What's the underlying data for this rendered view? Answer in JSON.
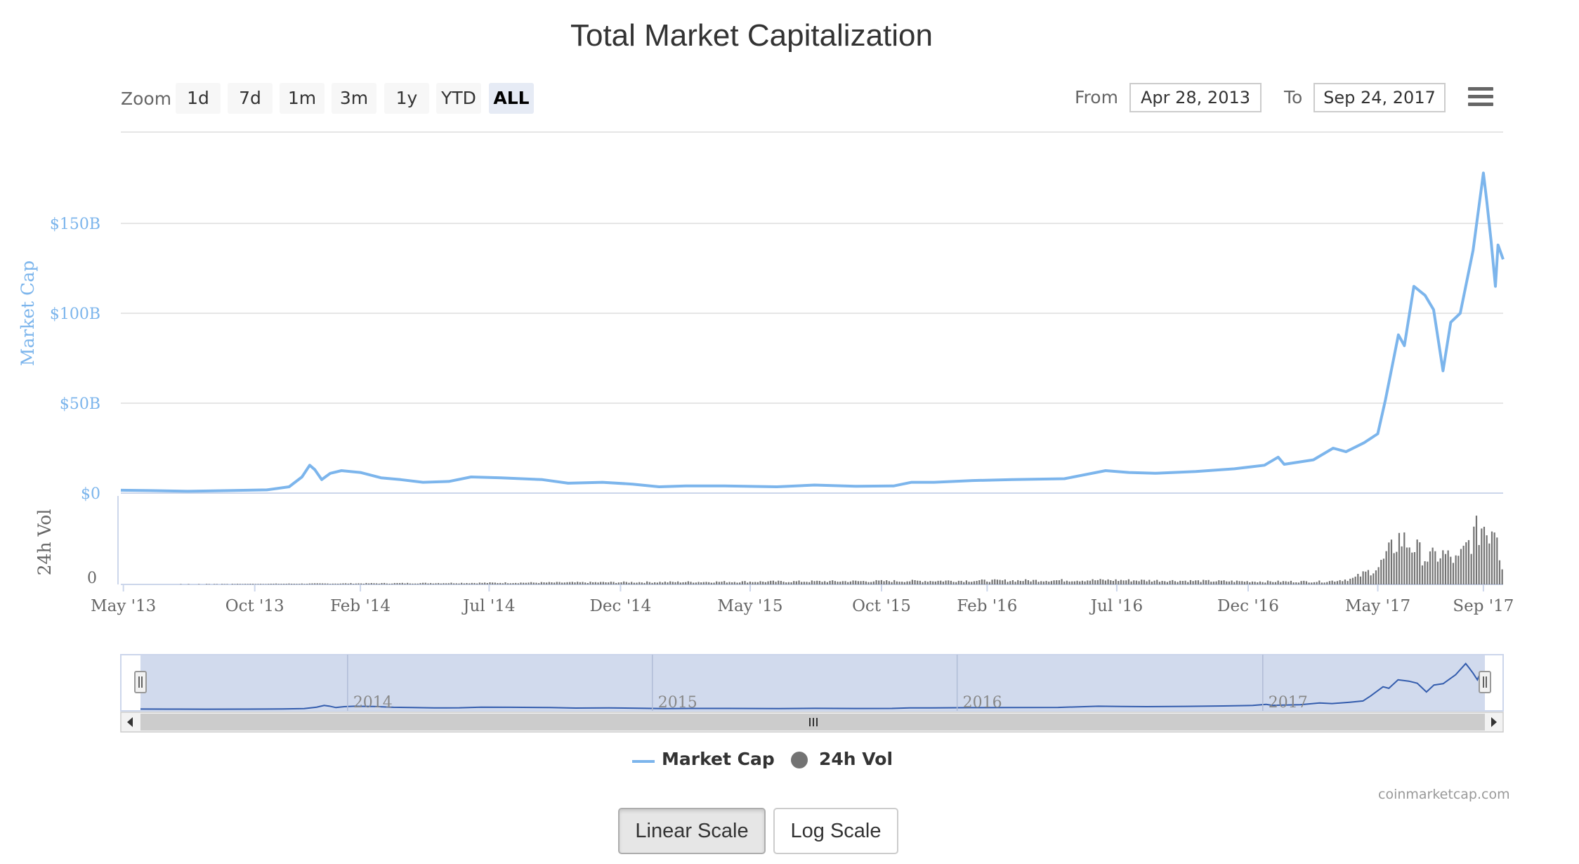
{
  "title": "Total Market Capitalization",
  "zoom": {
    "label": "Zoom",
    "buttons": [
      "1d",
      "7d",
      "1m",
      "3m",
      "1y",
      "YTD",
      "ALL"
    ],
    "selected": "ALL"
  },
  "range": {
    "from_label": "From",
    "from_value": "Apr 28, 2013",
    "to_label": "To",
    "to_value": "Sep 24, 2017"
  },
  "menu_icon": "hamburger-menu-icon",
  "legend": {
    "market_cap": "Market Cap",
    "volume": "24h Vol"
  },
  "credit": "coinmarketcap.com",
  "scale_buttons": {
    "linear": "Linear Scale",
    "log": "Log Scale",
    "selected": "Linear Scale"
  },
  "colors": {
    "market_cap_line": "#7cb5ec",
    "volume_bars": "#737373",
    "navigator_fill": "#ccd6eb",
    "navigator_line": "#335cad"
  },
  "chart_data": {
    "type": "line",
    "title": "Total Market Capitalization",
    "x_axis": {
      "type": "datetime",
      "range": [
        "2013-04-28",
        "2017-09-24"
      ],
      "tick_labels": [
        "May '13",
        "Oct '13",
        "Feb '14",
        "Jul '14",
        "Dec '14",
        "May '15",
        "Oct '15",
        "Feb '16",
        "Jul '16",
        "Dec '16",
        "May '17",
        "Sep '17"
      ],
      "tick_dates": [
        "2013-05-01",
        "2013-10-01",
        "2014-02-01",
        "2014-07-01",
        "2014-12-01",
        "2015-05-01",
        "2015-10-01",
        "2016-02-01",
        "2016-07-01",
        "2016-12-01",
        "2017-05-01",
        "2017-09-01"
      ]
    },
    "y_axis_market_cap": {
      "label": "Market Cap",
      "range": [
        0,
        200
      ],
      "unit": "$B",
      "tick_values": [
        0,
        50,
        100,
        150
      ],
      "tick_labels": [
        "$0",
        "$50B",
        "$100B",
        "$150B"
      ],
      "grid": true
    },
    "y_axis_volume": {
      "label": "24h Vol",
      "tick_labels": [
        "0"
      ]
    },
    "legend_placement": "bottom-center",
    "series": [
      {
        "name": "Market Cap",
        "unit": "$B",
        "points": [
          [
            "2013-04-28",
            1.6
          ],
          [
            "2013-06-01",
            1.4
          ],
          [
            "2013-07-15",
            1.0
          ],
          [
            "2013-09-01",
            1.4
          ],
          [
            "2013-10-15",
            1.8
          ],
          [
            "2013-11-10",
            3.5
          ],
          [
            "2013-11-25",
            9.0
          ],
          [
            "2013-12-04",
            15.5
          ],
          [
            "2013-12-10",
            13.0
          ],
          [
            "2013-12-18",
            7.5
          ],
          [
            "2013-12-28",
            11.0
          ],
          [
            "2014-01-10",
            12.5
          ],
          [
            "2014-02-01",
            11.5
          ],
          [
            "2014-02-25",
            8.5
          ],
          [
            "2014-03-20",
            7.5
          ],
          [
            "2014-04-15",
            6.0
          ],
          [
            "2014-05-15",
            6.5
          ],
          [
            "2014-06-10",
            9.0
          ],
          [
            "2014-07-15",
            8.5
          ],
          [
            "2014-09-01",
            7.5
          ],
          [
            "2014-10-01",
            5.5
          ],
          [
            "2014-11-10",
            6.0
          ],
          [
            "2014-12-15",
            5.0
          ],
          [
            "2015-01-15",
            3.5
          ],
          [
            "2015-02-15",
            4.0
          ],
          [
            "2015-04-01",
            4.0
          ],
          [
            "2015-06-01",
            3.5
          ],
          [
            "2015-07-15",
            4.5
          ],
          [
            "2015-09-01",
            3.8
          ],
          [
            "2015-10-15",
            4.0
          ],
          [
            "2015-11-05",
            6.0
          ],
          [
            "2015-12-01",
            6.0
          ],
          [
            "2016-01-15",
            7.0
          ],
          [
            "2016-03-01",
            7.5
          ],
          [
            "2016-05-01",
            8.0
          ],
          [
            "2016-06-18",
            12.5
          ],
          [
            "2016-07-15",
            11.5
          ],
          [
            "2016-08-15",
            11.0
          ],
          [
            "2016-10-01",
            12.0
          ],
          [
            "2016-11-15",
            13.5
          ],
          [
            "2016-12-20",
            15.5
          ],
          [
            "2017-01-05",
            20.0
          ],
          [
            "2017-01-12",
            16.0
          ],
          [
            "2017-02-15",
            18.5
          ],
          [
            "2017-03-10",
            25.0
          ],
          [
            "2017-03-25",
            23.0
          ],
          [
            "2017-04-15",
            28.0
          ],
          [
            "2017-05-01",
            33.0
          ],
          [
            "2017-05-10",
            52.0
          ],
          [
            "2017-05-25",
            88.0
          ],
          [
            "2017-06-01",
            82.0
          ],
          [
            "2017-06-12",
            115.0
          ],
          [
            "2017-06-25",
            110.0
          ],
          [
            "2017-07-05",
            102.0
          ],
          [
            "2017-07-16",
            68.0
          ],
          [
            "2017-07-25",
            95.0
          ],
          [
            "2017-08-05",
            100.0
          ],
          [
            "2017-08-20",
            135.0
          ],
          [
            "2017-09-01",
            178.0
          ],
          [
            "2017-09-05",
            162.0
          ],
          [
            "2017-09-10",
            140.0
          ],
          [
            "2017-09-15",
            115.0
          ],
          [
            "2017-09-18",
            138.0
          ],
          [
            "2017-09-24",
            130.0
          ]
        ]
      },
      {
        "name": "24h Vol",
        "unit": "$B",
        "points": [
          [
            "2013-04-28",
            0.0
          ],
          [
            "2016-06-20",
            0.3
          ],
          [
            "2016-12-20",
            0.2
          ],
          [
            "2017-03-01",
            0.2
          ],
          [
            "2017-04-01",
            0.4
          ],
          [
            "2017-05-01",
            1.2
          ],
          [
            "2017-05-25",
            3.2
          ],
          [
            "2017-06-12",
            2.6
          ],
          [
            "2017-06-25",
            1.8
          ],
          [
            "2017-07-16",
            2.1
          ],
          [
            "2017-08-01",
            1.6
          ],
          [
            "2017-08-15",
            3.0
          ],
          [
            "2017-09-01",
            4.2
          ],
          [
            "2017-09-05",
            3.6
          ],
          [
            "2017-09-15",
            4.6
          ],
          [
            "2017-09-20",
            1.6
          ],
          [
            "2017-09-24",
            1.2
          ]
        ],
        "scale_max": 5.0
      }
    ],
    "navigator": {
      "year_labels": [
        "2014",
        "2015",
        "2016",
        "2017"
      ]
    }
  }
}
